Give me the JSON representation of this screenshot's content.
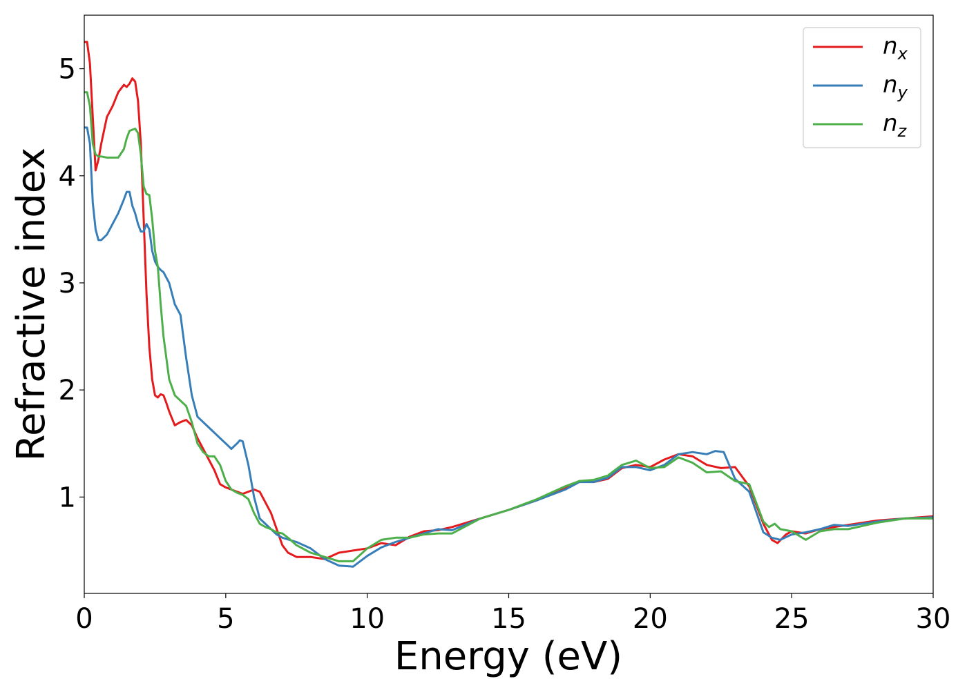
{
  "chart_data": {
    "type": "line",
    "title": "",
    "xlabel": "Energy (eV)",
    "ylabel": "Refractive index",
    "xlim": [
      0,
      30
    ],
    "ylim": [
      0.1,
      5.5
    ],
    "xticks": [
      0,
      5,
      10,
      15,
      20,
      25,
      30
    ],
    "yticks": [
      1,
      2,
      3,
      4,
      5
    ],
    "grid": false,
    "legend_position": "top-right",
    "series": [
      {
        "name": "n_x",
        "label_base": "n",
        "label_sub": "x",
        "color": "#e41a1c",
        "x": [
          0,
          0.1,
          0.2,
          0.3,
          0.4,
          0.5,
          0.6,
          0.8,
          1.0,
          1.2,
          1.4,
          1.5,
          1.6,
          1.7,
          1.8,
          1.9,
          2.0,
          2.1,
          2.2,
          2.3,
          2.4,
          2.5,
          2.6,
          2.7,
          2.8,
          2.9,
          3.0,
          3.2,
          3.4,
          3.6,
          3.8,
          4.0,
          4.2,
          4.4,
          4.6,
          4.8,
          5.0,
          5.2,
          5.4,
          5.6,
          5.8,
          6.0,
          6.2,
          6.4,
          6.6,
          6.8,
          7.0,
          7.2,
          7.5,
          8.0,
          8.5,
          9.0,
          9.5,
          10.0,
          10.5,
          11.0,
          11.5,
          12.0,
          12.5,
          13.0,
          14.0,
          15.0,
          16.0,
          17.0,
          17.5,
          18.0,
          18.5,
          19.0,
          19.5,
          20.0,
          20.5,
          21.0,
          21.5,
          22.0,
          22.5,
          23.0,
          23.5,
          24.0,
          24.3,
          24.5,
          24.8,
          25.0,
          25.5,
          26.0,
          26.5,
          27.0,
          28.0,
          29.0,
          30.0
        ],
        "y": [
          5.25,
          5.25,
          5.05,
          4.55,
          4.05,
          4.15,
          4.3,
          4.55,
          4.65,
          4.78,
          4.85,
          4.83,
          4.86,
          4.91,
          4.88,
          4.7,
          4.3,
          3.6,
          2.9,
          2.4,
          2.1,
          1.95,
          1.93,
          1.96,
          1.95,
          1.88,
          1.8,
          1.67,
          1.7,
          1.72,
          1.67,
          1.55,
          1.45,
          1.35,
          1.25,
          1.12,
          1.09,
          1.07,
          1.05,
          1.03,
          1.05,
          1.07,
          1.05,
          0.95,
          0.85,
          0.7,
          0.55,
          0.48,
          0.44,
          0.44,
          0.42,
          0.48,
          0.5,
          0.52,
          0.57,
          0.55,
          0.63,
          0.68,
          0.69,
          0.72,
          0.8,
          0.88,
          0.97,
          1.08,
          1.15,
          1.14,
          1.17,
          1.27,
          1.3,
          1.28,
          1.35,
          1.4,
          1.38,
          1.3,
          1.27,
          1.28,
          1.1,
          0.75,
          0.6,
          0.57,
          0.65,
          0.68,
          0.66,
          0.7,
          0.72,
          0.74,
          0.78,
          0.8,
          0.82
        ]
      },
      {
        "name": "n_y",
        "label_base": "n",
        "label_sub": "y",
        "color": "#377eb8",
        "x": [
          0,
          0.1,
          0.2,
          0.3,
          0.4,
          0.5,
          0.6,
          0.8,
          1.0,
          1.2,
          1.4,
          1.5,
          1.6,
          1.7,
          1.8,
          1.9,
          2.0,
          2.1,
          2.2,
          2.3,
          2.4,
          2.5,
          2.6,
          2.7,
          2.8,
          3.0,
          3.2,
          3.4,
          3.6,
          3.8,
          4.0,
          4.2,
          4.4,
          4.6,
          4.8,
          5.0,
          5.2,
          5.4,
          5.5,
          5.6,
          5.8,
          6.0,
          6.2,
          6.4,
          6.6,
          6.8,
          7.0,
          7.5,
          8.0,
          8.5,
          9.0,
          9.5,
          10.0,
          10.5,
          11.0,
          11.5,
          12.0,
          12.5,
          13.0,
          14.0,
          15.0,
          16.0,
          17.0,
          17.5,
          18.0,
          18.5,
          19.0,
          19.5,
          20.0,
          20.5,
          21.0,
          21.5,
          22.0,
          22.3,
          22.6,
          23.0,
          23.5,
          24.0,
          24.3,
          24.6,
          25.0,
          25.5,
          26.0,
          26.5,
          27.0,
          28.0,
          29.0,
          30.0
        ],
        "y": [
          4.45,
          4.45,
          4.3,
          3.75,
          3.5,
          3.4,
          3.4,
          3.45,
          3.55,
          3.65,
          3.78,
          3.85,
          3.85,
          3.72,
          3.65,
          3.55,
          3.48,
          3.48,
          3.55,
          3.5,
          3.3,
          3.2,
          3.15,
          3.12,
          3.1,
          3.0,
          2.8,
          2.7,
          2.3,
          1.95,
          1.75,
          1.7,
          1.65,
          1.6,
          1.55,
          1.5,
          1.45,
          1.5,
          1.53,
          1.52,
          1.3,
          1.0,
          0.8,
          0.75,
          0.7,
          0.65,
          0.62,
          0.58,
          0.52,
          0.42,
          0.36,
          0.35,
          0.45,
          0.53,
          0.58,
          0.62,
          0.66,
          0.7,
          0.69,
          0.8,
          0.88,
          0.97,
          1.07,
          1.14,
          1.14,
          1.18,
          1.28,
          1.28,
          1.25,
          1.3,
          1.4,
          1.42,
          1.4,
          1.43,
          1.42,
          1.17,
          1.05,
          0.67,
          0.62,
          0.6,
          0.65,
          0.67,
          0.7,
          0.74,
          0.73,
          0.77,
          0.8,
          0.81
        ]
      },
      {
        "name": "n_z",
        "label_base": "n",
        "label_sub": "z",
        "color": "#4daf4a",
        "x": [
          0,
          0.1,
          0.2,
          0.3,
          0.4,
          0.5,
          0.6,
          0.8,
          1.0,
          1.2,
          1.4,
          1.5,
          1.6,
          1.7,
          1.8,
          1.9,
          2.0,
          2.1,
          2.2,
          2.3,
          2.4,
          2.5,
          2.6,
          2.7,
          2.8,
          2.9,
          3.0,
          3.2,
          3.4,
          3.6,
          3.8,
          4.0,
          4.2,
          4.4,
          4.6,
          4.8,
          5.0,
          5.2,
          5.4,
          5.6,
          5.8,
          6.0,
          6.2,
          6.4,
          6.6,
          6.8,
          7.0,
          7.2,
          7.5,
          8.0,
          8.5,
          9.0,
          9.5,
          10.0,
          10.5,
          11.0,
          11.5,
          12.0,
          12.5,
          13.0,
          14.0,
          15.0,
          16.0,
          17.0,
          17.5,
          18.0,
          18.5,
          19.0,
          19.5,
          20.0,
          20.5,
          21.0,
          21.5,
          22.0,
          22.5,
          23.0,
          23.5,
          24.0,
          24.2,
          24.4,
          24.6,
          25.0,
          25.5,
          26.0,
          26.5,
          27.0,
          28.0,
          29.0,
          30.0
        ],
        "y": [
          4.78,
          4.78,
          4.65,
          4.3,
          4.2,
          4.18,
          4.18,
          4.17,
          4.17,
          4.17,
          4.25,
          4.35,
          4.42,
          4.43,
          4.44,
          4.4,
          4.2,
          3.9,
          3.83,
          3.82,
          3.6,
          3.3,
          3.15,
          2.8,
          2.5,
          2.3,
          2.1,
          1.95,
          1.9,
          1.85,
          1.7,
          1.5,
          1.42,
          1.38,
          1.38,
          1.3,
          1.15,
          1.07,
          1.04,
          1.02,
          0.98,
          0.85,
          0.75,
          0.72,
          0.7,
          0.67,
          0.66,
          0.62,
          0.55,
          0.48,
          0.44,
          0.4,
          0.4,
          0.52,
          0.6,
          0.62,
          0.62,
          0.65,
          0.66,
          0.66,
          0.8,
          0.88,
          0.98,
          1.1,
          1.15,
          1.16,
          1.2,
          1.3,
          1.34,
          1.27,
          1.28,
          1.37,
          1.32,
          1.23,
          1.24,
          1.15,
          1.12,
          0.77,
          0.72,
          0.75,
          0.7,
          0.68,
          0.6,
          0.68,
          0.7,
          0.7,
          0.76,
          0.8,
          0.8
        ]
      }
    ]
  }
}
